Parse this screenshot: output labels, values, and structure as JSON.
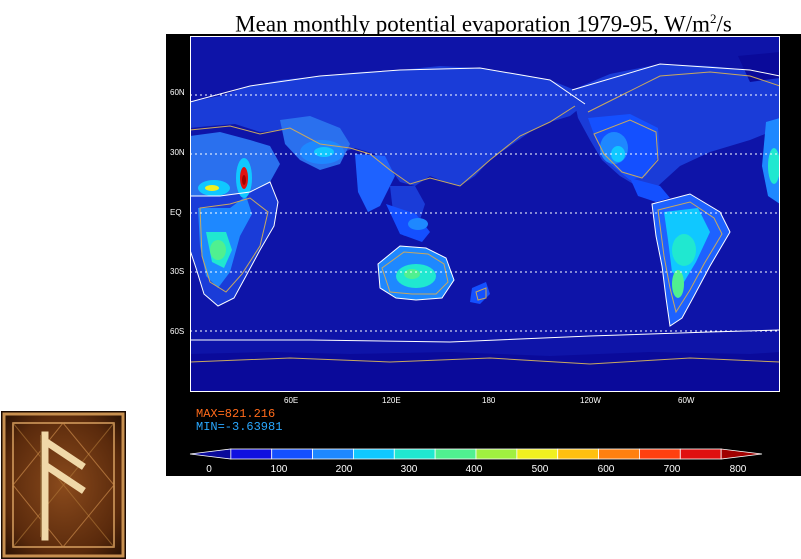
{
  "title": {
    "text": "Mean monthly potential evaporation 1979-95, W/m",
    "sup": "2",
    "suffix": "/s"
  },
  "axes": {
    "lat_labels": [
      "60N",
      "30N",
      "EQ",
      "30S",
      "60S"
    ],
    "lon_labels": [
      "60E",
      "120E",
      "180",
      "120W",
      "60W"
    ]
  },
  "stats": {
    "max": "MAX=821.216",
    "min": "MIN=-3.63981"
  },
  "colorbar": {
    "labels": [
      "0",
      "100",
      "200",
      "300",
      "400",
      "500",
      "600",
      "700",
      "800"
    ],
    "colors": [
      "#0a0a9a",
      "#1010e0",
      "#1450ff",
      "#1e88ff",
      "#10c8ff",
      "#20e8d0",
      "#50f090",
      "#a0f040",
      "#f0f020",
      "#ffc010",
      "#ff8010",
      "#ff4010",
      "#e01010",
      "#a00000"
    ]
  },
  "logo": {
    "name": "rune-emblem"
  }
}
